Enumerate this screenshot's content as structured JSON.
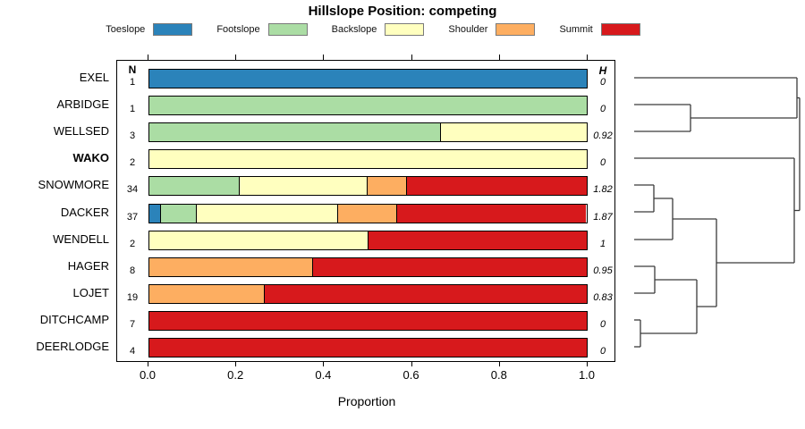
{
  "columns": {
    "n": "N",
    "h": "H"
  },
  "chart_data": {
    "type": "bar",
    "stacked": true,
    "orientation": "horizontal",
    "title": "Hillslope Position: competing",
    "xlabel": "Proportion",
    "xlim": [
      0,
      1
    ],
    "x_ticks": [
      "0.0",
      "0.2",
      "0.4",
      "0.6",
      "0.8",
      "1.0"
    ],
    "grid": false,
    "legend_position": "top",
    "categories": [
      "EXEL",
      "ARBIDGE",
      "WELLSED",
      "WAKO",
      "SNOWMORE",
      "DACKER",
      "WENDELL",
      "HAGER",
      "LOJET",
      "DITCHCAMP",
      "DEERLODGE"
    ],
    "emphasized_category": "WAKO",
    "n_values": [
      1,
      1,
      3,
      2,
      34,
      37,
      2,
      8,
      19,
      7,
      4
    ],
    "h_values": [
      "0",
      "0",
      "0.92",
      "0",
      "1.82",
      "1.87",
      "1",
      "0.95",
      "0.83",
      "0",
      "0"
    ],
    "series": [
      {
        "name": "Toeslope",
        "color": "#2b83ba",
        "values": [
          1,
          0,
          0,
          0,
          0,
          0.027,
          0,
          0,
          0,
          0,
          0
        ]
      },
      {
        "name": "Footslope",
        "color": "#abdda4",
        "values": [
          0,
          1,
          0.667,
          0,
          0.206,
          0.081,
          0,
          0,
          0,
          0,
          0
        ]
      },
      {
        "name": "Backslope",
        "color": "#ffffbf",
        "values": [
          0,
          0,
          0.333,
          1,
          0.294,
          0.324,
          0.5,
          0,
          0,
          0,
          0
        ]
      },
      {
        "name": "Shoulder",
        "color": "#fdae61",
        "values": [
          0,
          0,
          0,
          0,
          0.088,
          0.135,
          0,
          0.375,
          0.263,
          0,
          0
        ]
      },
      {
        "name": "Summit",
        "color": "#d7191c",
        "values": [
          0,
          0,
          0,
          0,
          0.412,
          0.432,
          0.5,
          0.625,
          0.737,
          1,
          1
        ]
      }
    ],
    "dendrogram": {
      "leaf_order": [
        "EXEL",
        "ARBIDGE",
        "WELLSED",
        "WAKO",
        "SNOWMORE",
        "DACKER",
        "WENDELL",
        "HAGER",
        "LOJET",
        "DITCHCAMP",
        "DEERLODGE"
      ],
      "segments": [
        [
          19,
          27,
          201,
          27
        ],
        [
          19,
          57,
          82,
          57
        ],
        [
          19,
          87,
          82,
          87
        ],
        [
          82,
          57,
          82,
          87
        ],
        [
          82,
          72,
          201,
          72
        ],
        [
          201,
          27,
          201,
          72
        ],
        [
          19,
          117,
          198,
          117
        ],
        [
          19,
          147,
          41,
          147
        ],
        [
          19,
          177,
          41,
          177
        ],
        [
          41,
          147,
          41,
          177
        ],
        [
          41,
          162,
          62,
          162
        ],
        [
          19,
          208,
          62,
          208
        ],
        [
          62,
          162,
          62,
          208
        ],
        [
          62,
          185,
          111,
          185
        ],
        [
          19,
          238,
          42,
          238
        ],
        [
          19,
          268,
          42,
          268
        ],
        [
          42,
          238,
          42,
          268
        ],
        [
          42,
          253,
          89,
          253
        ],
        [
          19,
          298,
          26,
          298
        ],
        [
          19,
          328,
          26,
          328
        ],
        [
          26,
          298,
          26,
          328
        ],
        [
          26,
          313,
          89,
          313
        ],
        [
          89,
          253,
          89,
          313
        ],
        [
          89,
          283,
          111,
          283
        ],
        [
          111,
          185,
          111,
          283
        ],
        [
          111,
          234,
          198,
          234
        ],
        [
          198,
          117,
          198,
          234
        ],
        [
          198,
          175.5,
          204,
          175.5
        ],
        [
          201,
          49.5,
          204,
          49.5
        ],
        [
          204,
          49.5,
          204,
          175.5
        ]
      ]
    }
  }
}
